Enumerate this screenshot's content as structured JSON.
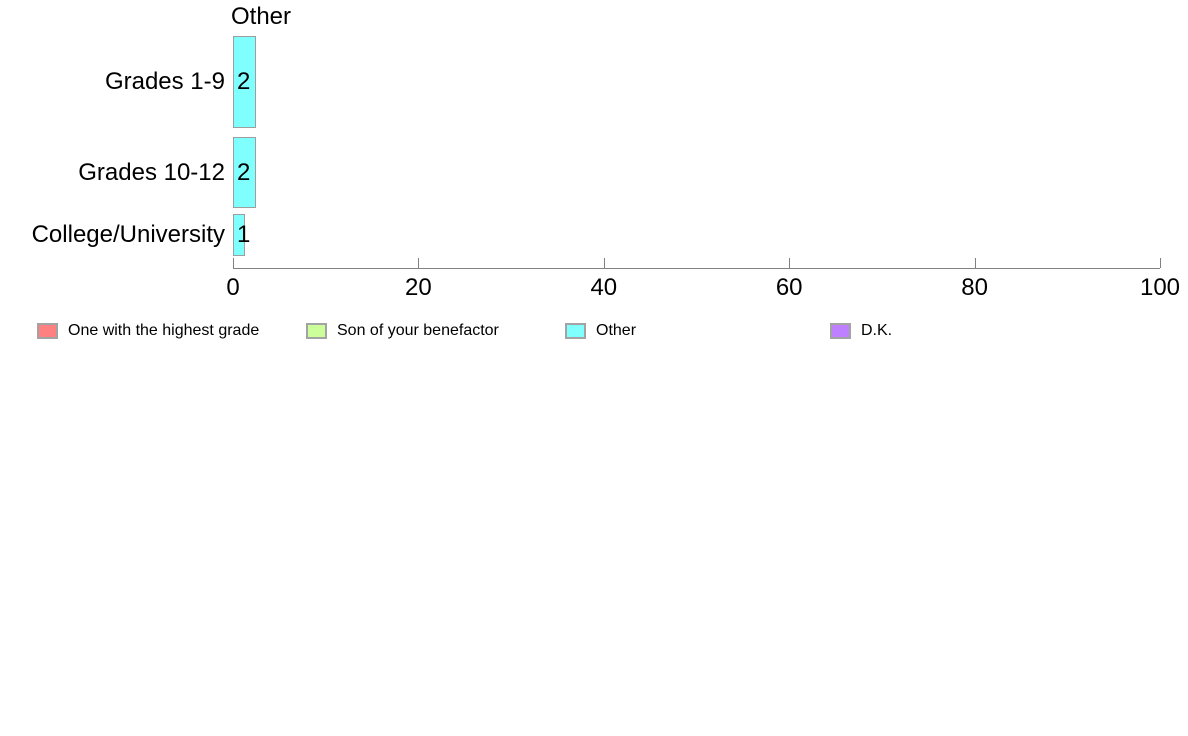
{
  "chart_data": {
    "type": "bar",
    "orientation": "horizontal",
    "title": "Other",
    "categories": [
      "Grades 1-9",
      "Grades 10-12",
      "College/University"
    ],
    "values": [
      2,
      2,
      1
    ],
    "value_labels": [
      "2",
      "2",
      "1"
    ],
    "xlabel": "",
    "ylabel": "",
    "xlim": [
      0,
      100
    ],
    "x_ticks": [
      0,
      20,
      40,
      60,
      80,
      100
    ],
    "grid": false,
    "legend_position": "bottom",
    "bar_color": "#80FFFF",
    "bar_border_color": "#9E9E9E",
    "axis_color": "#808080",
    "legend": [
      {
        "label": "One with the highest grade",
        "color": "#FF8080"
      },
      {
        "label": "Son of your benefactor",
        "color": "#CCFF99"
      },
      {
        "label": "Other",
        "color": "#80FFFF"
      },
      {
        "label": "D.K.",
        "color": "#BF80FF"
      }
    ]
  }
}
